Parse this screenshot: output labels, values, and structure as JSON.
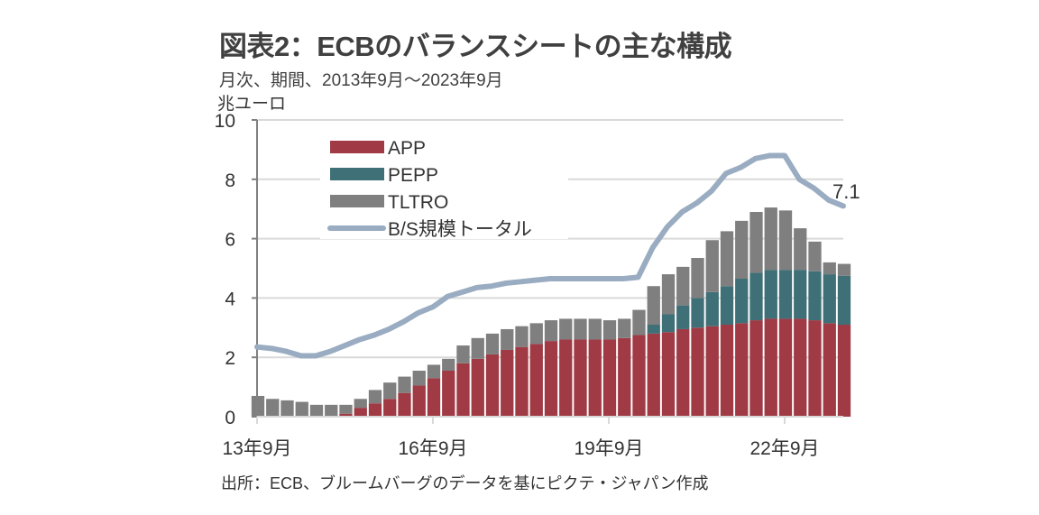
{
  "title": "図表2：ECBのバランスシートの主な構成",
  "subtitle": "月次、期間、2013年9月～2023年9月",
  "source": "出所：ECB、ブルームバーグのデータを基にピクテ・ジャパン作成",
  "chart_data": {
    "type": "bar",
    "stacked": true,
    "title": "図表2：ECBのバランスシートの主な構成",
    "subtitle": "月次、期間、2013年9月～2023年9月",
    "xlabel": "",
    "ylabel": "兆ユーロ",
    "ylim": [
      0,
      10
    ],
    "yticks": [
      "0",
      "2",
      "4",
      "6",
      "8",
      "10"
    ],
    "xticks": [
      "13年9月",
      "16年9月",
      "19年9月",
      "22年9月"
    ],
    "grid": true,
    "legend_position": "top-left",
    "annotation": "7.1",
    "x": [
      "2013-09",
      "2013-12",
      "2014-03",
      "2014-06",
      "2014-09",
      "2014-12",
      "2015-03",
      "2015-06",
      "2015-09",
      "2015-12",
      "2016-03",
      "2016-06",
      "2016-09",
      "2016-12",
      "2017-03",
      "2017-06",
      "2017-09",
      "2017-12",
      "2018-03",
      "2018-06",
      "2018-09",
      "2018-12",
      "2019-03",
      "2019-06",
      "2019-09",
      "2019-12",
      "2020-03",
      "2020-06",
      "2020-09",
      "2020-12",
      "2021-03",
      "2021-06",
      "2021-09",
      "2021-12",
      "2022-03",
      "2022-06",
      "2022-09",
      "2022-12",
      "2023-03",
      "2023-06",
      "2023-09"
    ],
    "colors": {
      "APP": "#a03a44",
      "PEPP": "#3f7077",
      "TLTRO": "#7f7f7f",
      "total": "#9aacc1"
    },
    "series": [
      {
        "name": "APP",
        "type": "bar",
        "values": [
          0,
          0,
          0,
          0,
          0,
          0,
          0.1,
          0.3,
          0.45,
          0.6,
          0.8,
          1.05,
          1.3,
          1.55,
          1.8,
          1.95,
          2.1,
          2.25,
          2.35,
          2.45,
          2.55,
          2.6,
          2.6,
          2.6,
          2.6,
          2.65,
          2.75,
          2.8,
          2.85,
          2.95,
          3.0,
          3.05,
          3.1,
          3.15,
          3.25,
          3.3,
          3.3,
          3.3,
          3.25,
          3.15,
          3.1
        ]
      },
      {
        "name": "PEPP",
        "type": "bar",
        "values": [
          0,
          0,
          0,
          0,
          0,
          0,
          0,
          0,
          0,
          0,
          0,
          0,
          0,
          0,
          0,
          0,
          0,
          0,
          0,
          0,
          0,
          0,
          0,
          0,
          0,
          0,
          0,
          0.3,
          0.6,
          0.8,
          1.0,
          1.15,
          1.3,
          1.5,
          1.6,
          1.65,
          1.65,
          1.65,
          1.65,
          1.65,
          1.65
        ]
      },
      {
        "name": "TLTRO",
        "type": "bar",
        "values": [
          0.7,
          0.6,
          0.55,
          0.5,
          0.4,
          0.4,
          0.3,
          0.3,
          0.45,
          0.55,
          0.55,
          0.5,
          0.45,
          0.4,
          0.6,
          0.7,
          0.7,
          0.7,
          0.7,
          0.7,
          0.7,
          0.7,
          0.7,
          0.7,
          0.65,
          0.65,
          0.85,
          1.3,
          1.35,
          1.3,
          1.35,
          1.75,
          1.85,
          1.95,
          2.05,
          2.1,
          2.0,
          1.4,
          1.0,
          0.4,
          0.4
        ]
      },
      {
        "name": "B/S規模トータル",
        "type": "line",
        "values": [
          2.35,
          2.3,
          2.2,
          2.05,
          2.05,
          2.2,
          2.4,
          2.6,
          2.75,
          2.95,
          3.2,
          3.5,
          3.7,
          4.05,
          4.2,
          4.35,
          4.4,
          4.5,
          4.55,
          4.6,
          4.65,
          4.65,
          4.65,
          4.65,
          4.65,
          4.65,
          4.7,
          5.7,
          6.4,
          6.9,
          7.2,
          7.6,
          8.2,
          8.4,
          8.7,
          8.8,
          8.8,
          8.0,
          7.7,
          7.3,
          7.1
        ]
      }
    ]
  }
}
